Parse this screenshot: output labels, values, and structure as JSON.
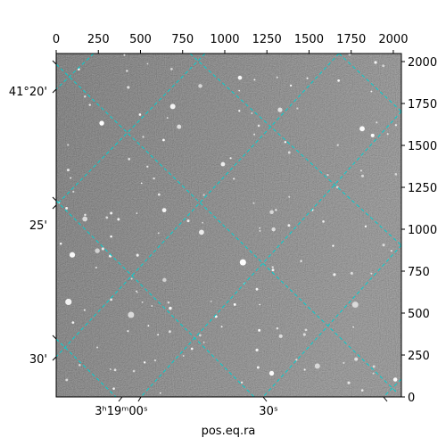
{
  "chart_data": {
    "type": "image",
    "xlabel": "pos.eq.ra",
    "xlim": [
      0,
      2048
    ],
    "xticks": [
      0,
      250,
      500,
      750,
      1000,
      1250,
      1500,
      1750,
      2000
    ],
    "ylim": [
      0,
      2048
    ],
    "yticks": [
      0,
      250,
      500,
      750,
      1000,
      1250,
      1500,
      1750,
      2000
    ],
    "world_x_labels": [
      "3ʰ19ᵐ00ˢ",
      "30ˢ"
    ],
    "world_y_labels": [
      "41°20'",
      "25'",
      "30'"
    ],
    "grid_color": "#00d0d0"
  }
}
